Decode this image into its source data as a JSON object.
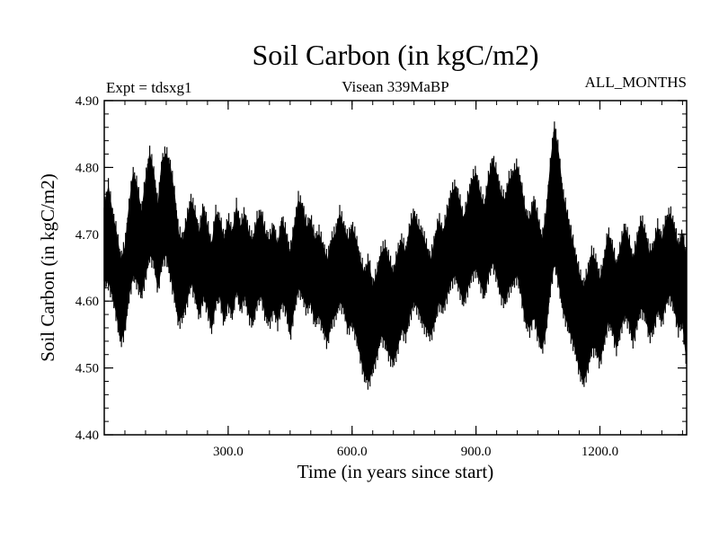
{
  "chart_data": {
    "type": "line",
    "title": "Soil Carbon (in kgC/m2)",
    "subtitle": "Visean 339MaBP",
    "experiment_label": "Expt = tdsxg1",
    "period_label": "ALL_MONTHS",
    "xlabel": "Time (in years since start)",
    "ylabel": "Soil Carbon (in kgC/m2)",
    "xlim": [
      0,
      1410
    ],
    "ylim": [
      4.4,
      4.9
    ],
    "x_ticks": [
      300,
      600,
      900,
      1200
    ],
    "x_tick_labels": [
      "300.0",
      "600.0",
      "900.0",
      "1200.0"
    ],
    "y_ticks": [
      4.4,
      4.5,
      4.6,
      4.7,
      4.8,
      4.9
    ],
    "y_tick_labels": [
      "4.40",
      "4.50",
      "4.60",
      "4.70",
      "4.80",
      "4.90"
    ],
    "series": [
      {
        "name": "Soil Carbon",
        "color": "#000000",
        "x": [
          0,
          10,
          20,
          30,
          40,
          50,
          60,
          70,
          80,
          90,
          100,
          110,
          120,
          130,
          140,
          150,
          160,
          170,
          180,
          190,
          200,
          210,
          220,
          230,
          240,
          250,
          260,
          270,
          280,
          290,
          300,
          310,
          320,
          330,
          340,
          350,
          360,
          370,
          380,
          390,
          400,
          410,
          420,
          430,
          440,
          450,
          460,
          470,
          480,
          490,
          500,
          510,
          520,
          530,
          540,
          550,
          560,
          570,
          580,
          590,
          600,
          610,
          620,
          630,
          640,
          650,
          660,
          670,
          680,
          690,
          700,
          710,
          720,
          730,
          740,
          750,
          760,
          770,
          780,
          790,
          800,
          810,
          820,
          830,
          840,
          850,
          860,
          870,
          880,
          890,
          900,
          910,
          920,
          930,
          940,
          950,
          960,
          970,
          980,
          990,
          1000,
          1010,
          1020,
          1030,
          1040,
          1050,
          1060,
          1070,
          1080,
          1090,
          1100,
          1110,
          1120,
          1130,
          1140,
          1150,
          1160,
          1170,
          1180,
          1190,
          1200,
          1210,
          1220,
          1230,
          1240,
          1250,
          1260,
          1270,
          1280,
          1290,
          1300,
          1310,
          1320,
          1330,
          1340,
          1350,
          1360,
          1370,
          1380,
          1390,
          1400,
          1410
        ],
        "upper": [
          4.74,
          4.77,
          4.73,
          4.7,
          4.66,
          4.68,
          4.74,
          4.79,
          4.77,
          4.73,
          4.78,
          4.82,
          4.79,
          4.74,
          4.81,
          4.82,
          4.8,
          4.76,
          4.7,
          4.69,
          4.72,
          4.75,
          4.73,
          4.7,
          4.74,
          4.71,
          4.68,
          4.73,
          4.72,
          4.69,
          4.72,
          4.7,
          4.74,
          4.71,
          4.73,
          4.7,
          4.69,
          4.72,
          4.73,
          4.7,
          4.69,
          4.71,
          4.68,
          4.72,
          4.7,
          4.67,
          4.71,
          4.75,
          4.74,
          4.71,
          4.72,
          4.69,
          4.7,
          4.68,
          4.66,
          4.69,
          4.7,
          4.73,
          4.71,
          4.69,
          4.71,
          4.69,
          4.66,
          4.64,
          4.66,
          4.62,
          4.64,
          4.67,
          4.68,
          4.66,
          4.64,
          4.67,
          4.69,
          4.67,
          4.71,
          4.73,
          4.71,
          4.7,
          4.68,
          4.66,
          4.69,
          4.72,
          4.7,
          4.73,
          4.76,
          4.77,
          4.75,
          4.72,
          4.75,
          4.78,
          4.79,
          4.76,
          4.74,
          4.78,
          4.81,
          4.79,
          4.76,
          4.75,
          4.78,
          4.79,
          4.8,
          4.77,
          4.73,
          4.72,
          4.75,
          4.72,
          4.69,
          4.73,
          4.8,
          4.86,
          4.82,
          4.76,
          4.73,
          4.7,
          4.67,
          4.64,
          4.62,
          4.64,
          4.67,
          4.66,
          4.63,
          4.66,
          4.7,
          4.68,
          4.65,
          4.68,
          4.71,
          4.69,
          4.66,
          4.69,
          4.72,
          4.7,
          4.67,
          4.68,
          4.71,
          4.69,
          4.72,
          4.73,
          4.71,
          4.68,
          4.7,
          4.66
        ],
        "lower": [
          4.63,
          4.63,
          4.61,
          4.58,
          4.54,
          4.56,
          4.61,
          4.64,
          4.63,
          4.61,
          4.64,
          4.67,
          4.66,
          4.62,
          4.66,
          4.67,
          4.64,
          4.61,
          4.57,
          4.58,
          4.6,
          4.63,
          4.61,
          4.58,
          4.61,
          4.59,
          4.56,
          4.6,
          4.61,
          4.57,
          4.6,
          4.58,
          4.62,
          4.59,
          4.61,
          4.58,
          4.57,
          4.6,
          4.61,
          4.58,
          4.57,
          4.59,
          4.57,
          4.6,
          4.59,
          4.55,
          4.59,
          4.62,
          4.61,
          4.59,
          4.6,
          4.57,
          4.58,
          4.56,
          4.54,
          4.57,
          4.58,
          4.6,
          4.59,
          4.56,
          4.57,
          4.55,
          4.52,
          4.49,
          4.48,
          4.5,
          4.52,
          4.55,
          4.54,
          4.52,
          4.51,
          4.53,
          4.56,
          4.55,
          4.58,
          4.6,
          4.59,
          4.57,
          4.56,
          4.55,
          4.57,
          4.6,
          4.59,
          4.61,
          4.63,
          4.64,
          4.62,
          4.6,
          4.62,
          4.64,
          4.65,
          4.63,
          4.61,
          4.64,
          4.66,
          4.64,
          4.61,
          4.6,
          4.62,
          4.63,
          4.64,
          4.61,
          4.57,
          4.56,
          4.58,
          4.55,
          4.53,
          4.56,
          4.62,
          4.66,
          4.63,
          4.59,
          4.57,
          4.55,
          4.53,
          4.5,
          4.48,
          4.5,
          4.53,
          4.53,
          4.51,
          4.54,
          4.57,
          4.56,
          4.53,
          4.56,
          4.58,
          4.57,
          4.54,
          4.57,
          4.59,
          4.58,
          4.55,
          4.56,
          4.59,
          4.57,
          4.6,
          4.61,
          4.59,
          4.56,
          4.57,
          4.51
        ]
      }
    ]
  }
}
